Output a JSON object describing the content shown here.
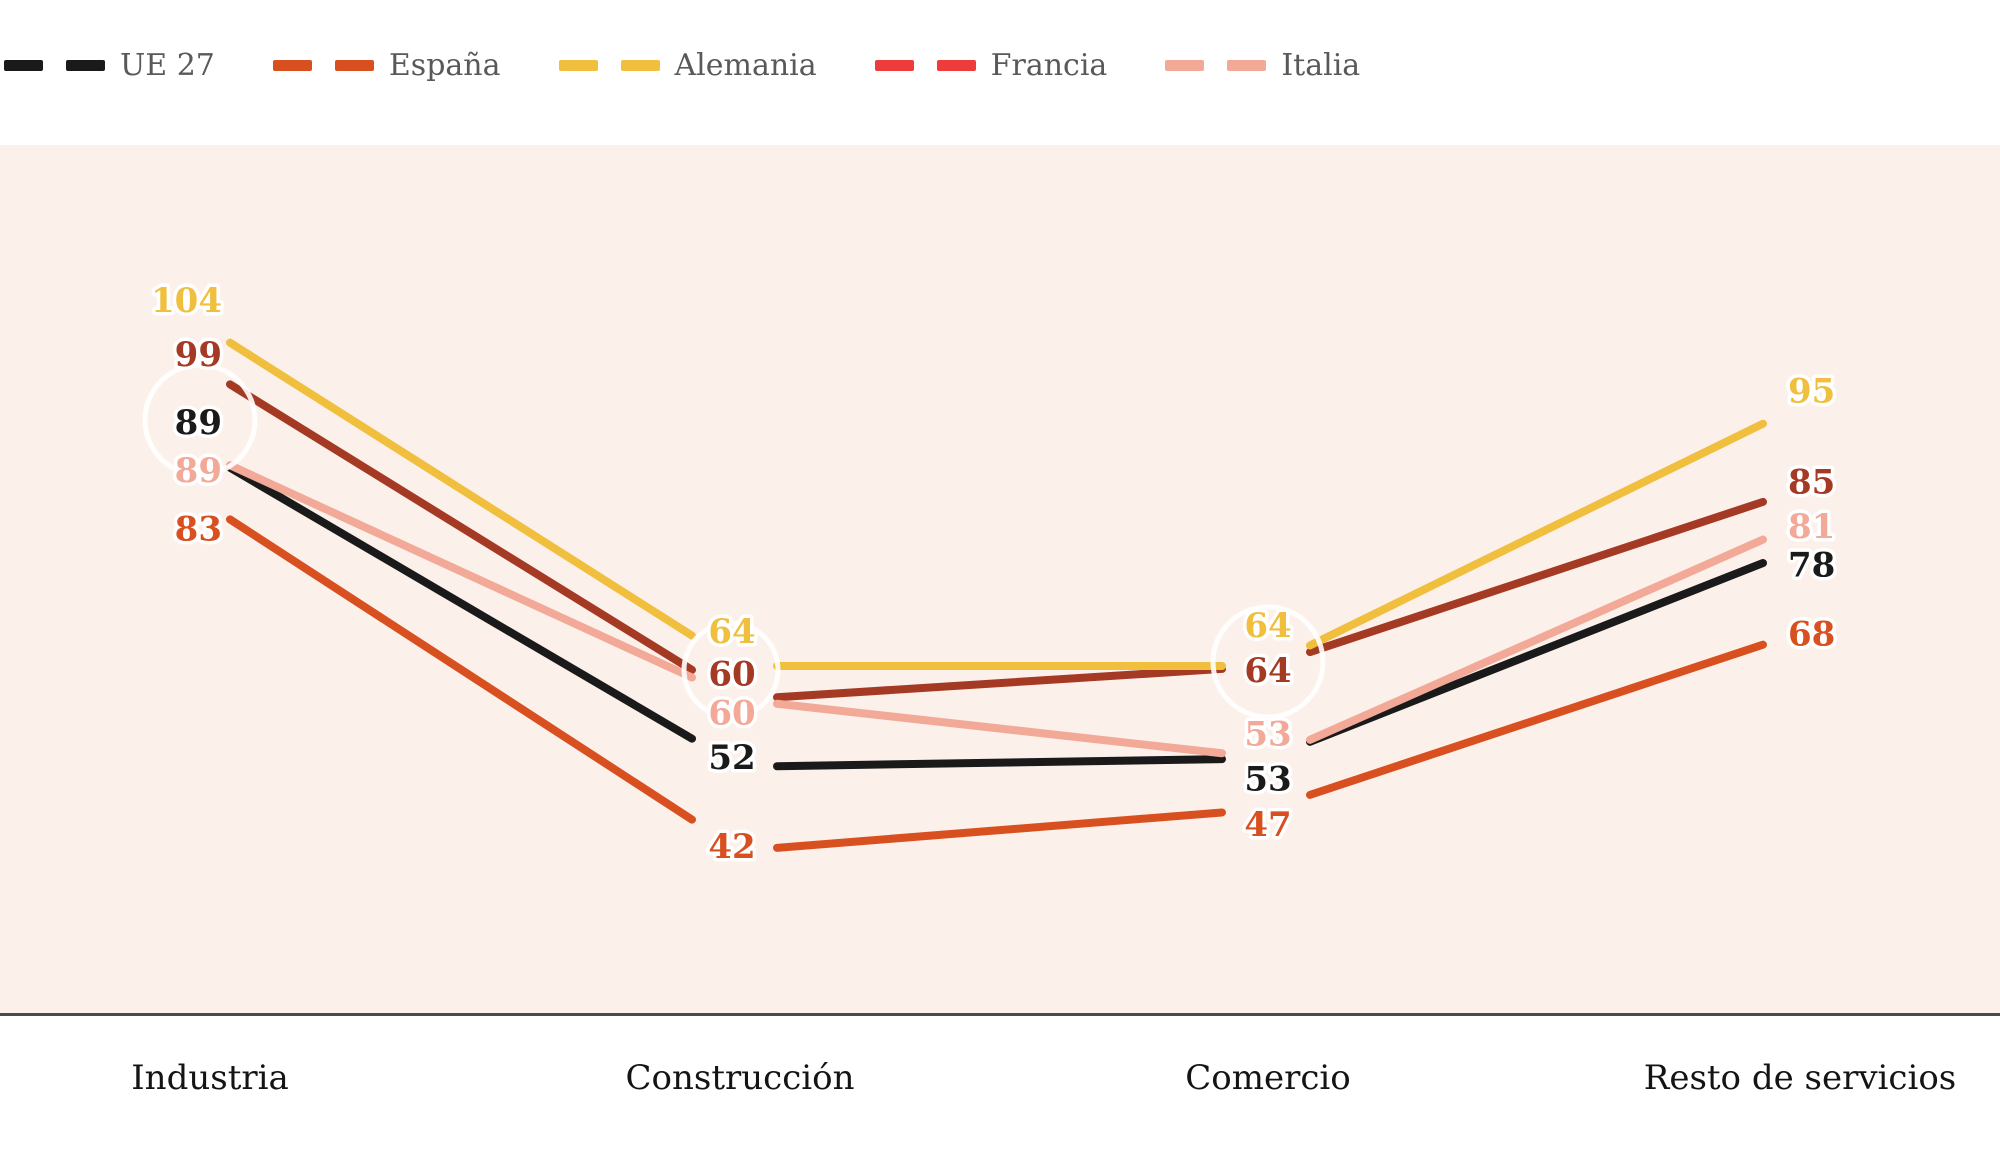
{
  "chart_data": {
    "type": "line",
    "title": "",
    "categories": [
      "Industria",
      "Construcción",
      "Comercio",
      "Resto de servicios"
    ],
    "series": [
      {
        "name": "UE 27",
        "color": "#1a1a1a",
        "legend_color": "#1a1a1a",
        "values": [
          89,
          52,
          53,
          78
        ]
      },
      {
        "name": "España",
        "color": "#d8501f",
        "legend_color": "#d8501f",
        "values": [
          83,
          42,
          47,
          68
        ]
      },
      {
        "name": "Alemania",
        "color": "#f0bf3d",
        "legend_color": "#f0bf3d",
        "values": [
          104,
          64,
          64,
          95
        ]
      },
      {
        "name": "Francia",
        "color": "#a43a24",
        "legend_color": "#ee3b3b",
        "values": [
          99,
          60,
          64,
          85
        ]
      },
      {
        "name": "Italia",
        "color": "#f3a997",
        "legend_color": "#f3a997",
        "values": [
          89,
          60,
          53,
          81
        ]
      }
    ],
    "legend_position": "top-left",
    "grid": false,
    "value_labels_shown": true,
    "xlabel": "",
    "ylabel": "",
    "ylim": [
      35,
      110
    ]
  },
  "colors": {
    "page_background": "#ffffff",
    "plot_background": "#fcf0eb",
    "axis_line": "#4b4b4b",
    "legend_text": "#58595b",
    "category_text": "#141414",
    "label_halo": "#ffffff"
  }
}
